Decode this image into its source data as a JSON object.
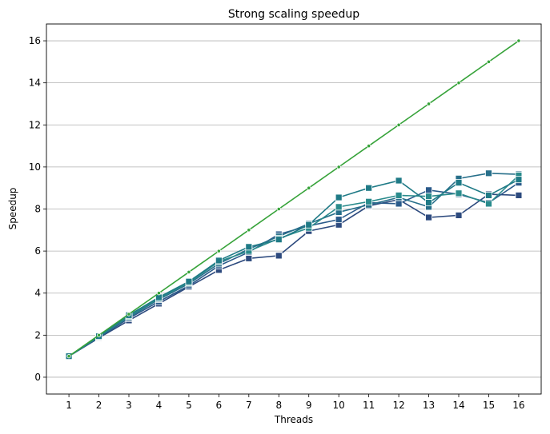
{
  "chart_data": {
    "type": "line",
    "title": "Strong scaling speedup",
    "xlabel": "Threads",
    "ylabel": "Speedup",
    "x": [
      1,
      2,
      3,
      4,
      5,
      6,
      7,
      8,
      9,
      10,
      11,
      12,
      13,
      14,
      15,
      16
    ],
    "xlim": [
      0.25,
      16.75
    ],
    "ylim": [
      -0.8,
      16.8
    ],
    "yticks": [
      0,
      2,
      4,
      6,
      8,
      10,
      12,
      14,
      16
    ],
    "grid": "horizontal",
    "series": [
      {
        "color": "#2d4a7e",
        "marker": "square",
        "values": [
          1.0,
          1.87,
          2.7,
          3.5,
          4.3,
          5.1,
          5.65,
          5.78,
          6.95,
          7.25,
          8.15,
          8.45,
          7.6,
          7.7,
          8.7,
          8.65
        ]
      },
      {
        "color": "#2a5a8a",
        "marker": "square",
        "values": [
          1.0,
          1.9,
          2.8,
          3.6,
          4.35,
          5.3,
          5.95,
          6.8,
          7.2,
          7.5,
          8.3,
          8.25,
          8.9,
          8.7,
          8.3,
          9.25
        ]
      },
      {
        "color": "#276f8a",
        "marker": "square",
        "values": [
          1.0,
          1.92,
          2.85,
          3.7,
          4.45,
          5.4,
          6.1,
          6.7,
          7.3,
          7.85,
          8.2,
          8.55,
          8.1,
          9.45,
          9.7,
          9.65
        ]
      },
      {
        "color": "#2a8b8c",
        "marker": "square",
        "values": [
          1.0,
          1.93,
          2.9,
          3.75,
          4.5,
          5.5,
          6.0,
          6.6,
          7.1,
          8.1,
          8.35,
          8.65,
          8.6,
          8.75,
          8.25,
          9.6
        ]
      },
      {
        "color": "#1f7a86",
        "marker": "square",
        "values": [
          1.0,
          1.95,
          2.95,
          3.8,
          4.55,
          5.55,
          6.2,
          6.55,
          7.25,
          8.55,
          9.0,
          9.35,
          8.3,
          9.25,
          8.65,
          9.4
        ]
      },
      {
        "color": "#37a33a",
        "marker": "dot",
        "values": [
          1,
          2,
          3,
          4,
          5,
          6,
          7,
          8,
          9,
          10,
          11,
          12,
          13,
          14,
          15,
          16
        ]
      }
    ]
  }
}
